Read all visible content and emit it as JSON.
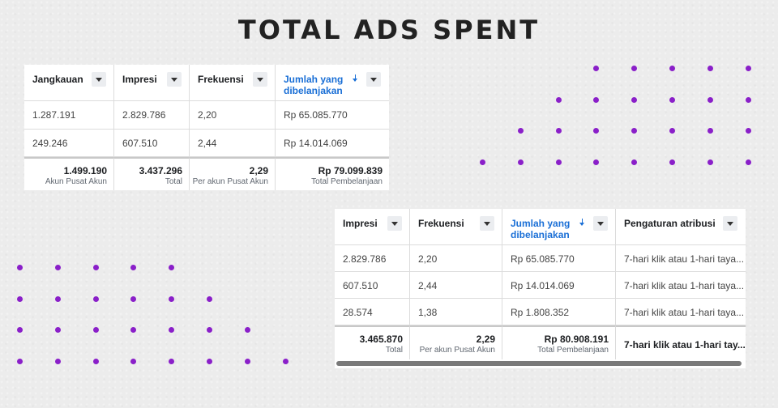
{
  "title": "TOTAL ADS SPENT",
  "table1": {
    "headers": [
      "Jangkauan",
      "Impresi",
      "Frekuensi",
      "Jumlah yang dibelanjakan"
    ],
    "rows": [
      [
        "1.287.191",
        "2.829.786",
        "2,20",
        "Rp 65.085.770"
      ],
      [
        "249.246",
        "607.510",
        "2,44",
        "Rp 14.014.069"
      ]
    ],
    "totals": [
      {
        "value": "1.499.190",
        "label": "Akun Pusat Akun"
      },
      {
        "value": "3.437.296",
        "label": "Total"
      },
      {
        "value": "2,29",
        "label": "Per akun Pusat Akun"
      },
      {
        "value": "Rp 79.099.839",
        "label": "Total Pembelanjaan"
      }
    ]
  },
  "table2": {
    "headers": [
      "Impresi",
      "Frekuensi",
      "Jumlah yang dibelanjakan",
      "Pengaturan atribusi"
    ],
    "rows": [
      [
        "2.829.786",
        "2,20",
        "Rp 65.085.770",
        "7-hari klik atau 1-hari taya..."
      ],
      [
        "607.510",
        "2,44",
        "Rp 14.014.069",
        "7-hari klik atau 1-hari taya..."
      ],
      [
        "28.574",
        "1,38",
        "Rp 1.808.352",
        "7-hari klik atau 1-hari taya..."
      ]
    ],
    "totals": [
      {
        "value": "3.465.870",
        "label": "Total"
      },
      {
        "value": "2,29",
        "label": "Per akun Pusat Akun"
      },
      {
        "value": "Rp 80.908.191",
        "label": "Total Pembelanjaan"
      },
      {
        "value": "7-hari klik atau 1-hari tay..."
      }
    ]
  }
}
